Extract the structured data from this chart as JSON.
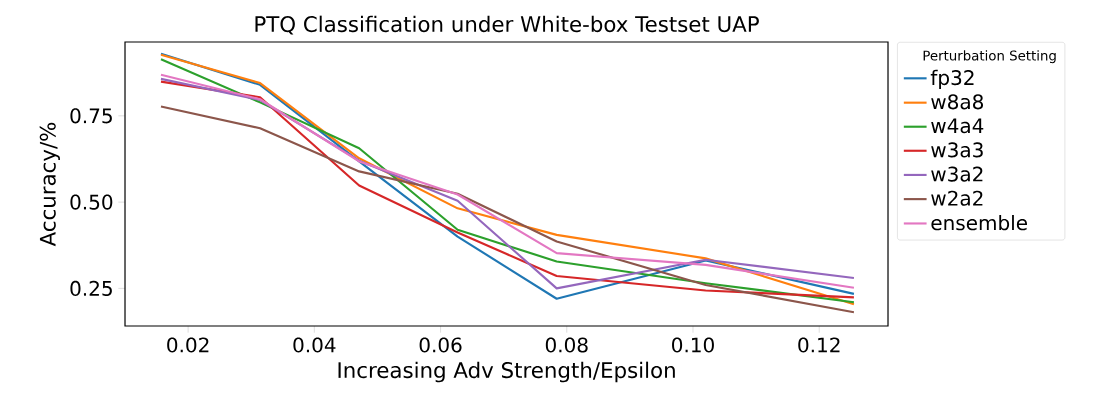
{
  "chart_data": {
    "type": "line",
    "title": "PTQ Classification under White-box Testset UAP",
    "xlabel": "Increasing Adv Strength/Epsilon",
    "ylabel": "Accuracy/%",
    "legend_title": "Perturbation Setting",
    "legend": "top right",
    "grid": false,
    "x": [
      0.0157,
      0.0314,
      0.0471,
      0.0627,
      0.0784,
      0.102,
      0.1255
    ],
    "xlim": [
      0.01,
      0.1309
    ],
    "ylim": [
      0.141,
      0.964
    ],
    "xticks": [
      {
        "value": 0.02,
        "label": "0.02"
      },
      {
        "value": 0.04,
        "label": "0.04"
      },
      {
        "value": 0.06,
        "label": "0.06"
      },
      {
        "value": 0.08,
        "label": "0.08"
      },
      {
        "value": 0.1,
        "label": "0.10"
      },
      {
        "value": 0.12,
        "label": "0.12"
      }
    ],
    "yticks": [
      {
        "value": 0.25,
        "label": "0.25"
      },
      {
        "value": 0.5,
        "label": "0.50"
      },
      {
        "value": 0.75,
        "label": "0.75"
      }
    ],
    "series": [
      {
        "name": "fp32",
        "color": "#1f77b4",
        "values": [
          0.93,
          0.84,
          0.618,
          0.4,
          0.22,
          0.331,
          0.234
        ]
      },
      {
        "name": "w8a8",
        "color": "#ff7f0e",
        "values": [
          0.927,
          0.845,
          0.627,
          0.482,
          0.405,
          0.337,
          0.204
        ]
      },
      {
        "name": "w4a4",
        "color": "#2ca02c",
        "values": [
          0.914,
          0.789,
          0.656,
          0.42,
          0.328,
          0.265,
          0.21
        ]
      },
      {
        "name": "w3a3",
        "color": "#d62728",
        "values": [
          0.849,
          0.804,
          0.548,
          0.412,
          0.286,
          0.244,
          0.224
        ]
      },
      {
        "name": "w3a2",
        "color": "#9467bd",
        "values": [
          0.857,
          0.796,
          0.62,
          0.504,
          0.25,
          0.333,
          0.28
        ]
      },
      {
        "name": "w2a2",
        "color": "#8c564b",
        "values": [
          0.777,
          0.714,
          0.589,
          0.524,
          0.386,
          0.26,
          0.181
        ]
      },
      {
        "name": "ensemble",
        "color": "#e377c2",
        "values": [
          0.869,
          0.798,
          0.618,
          0.522,
          0.352,
          0.318,
          0.252
        ]
      }
    ]
  }
}
